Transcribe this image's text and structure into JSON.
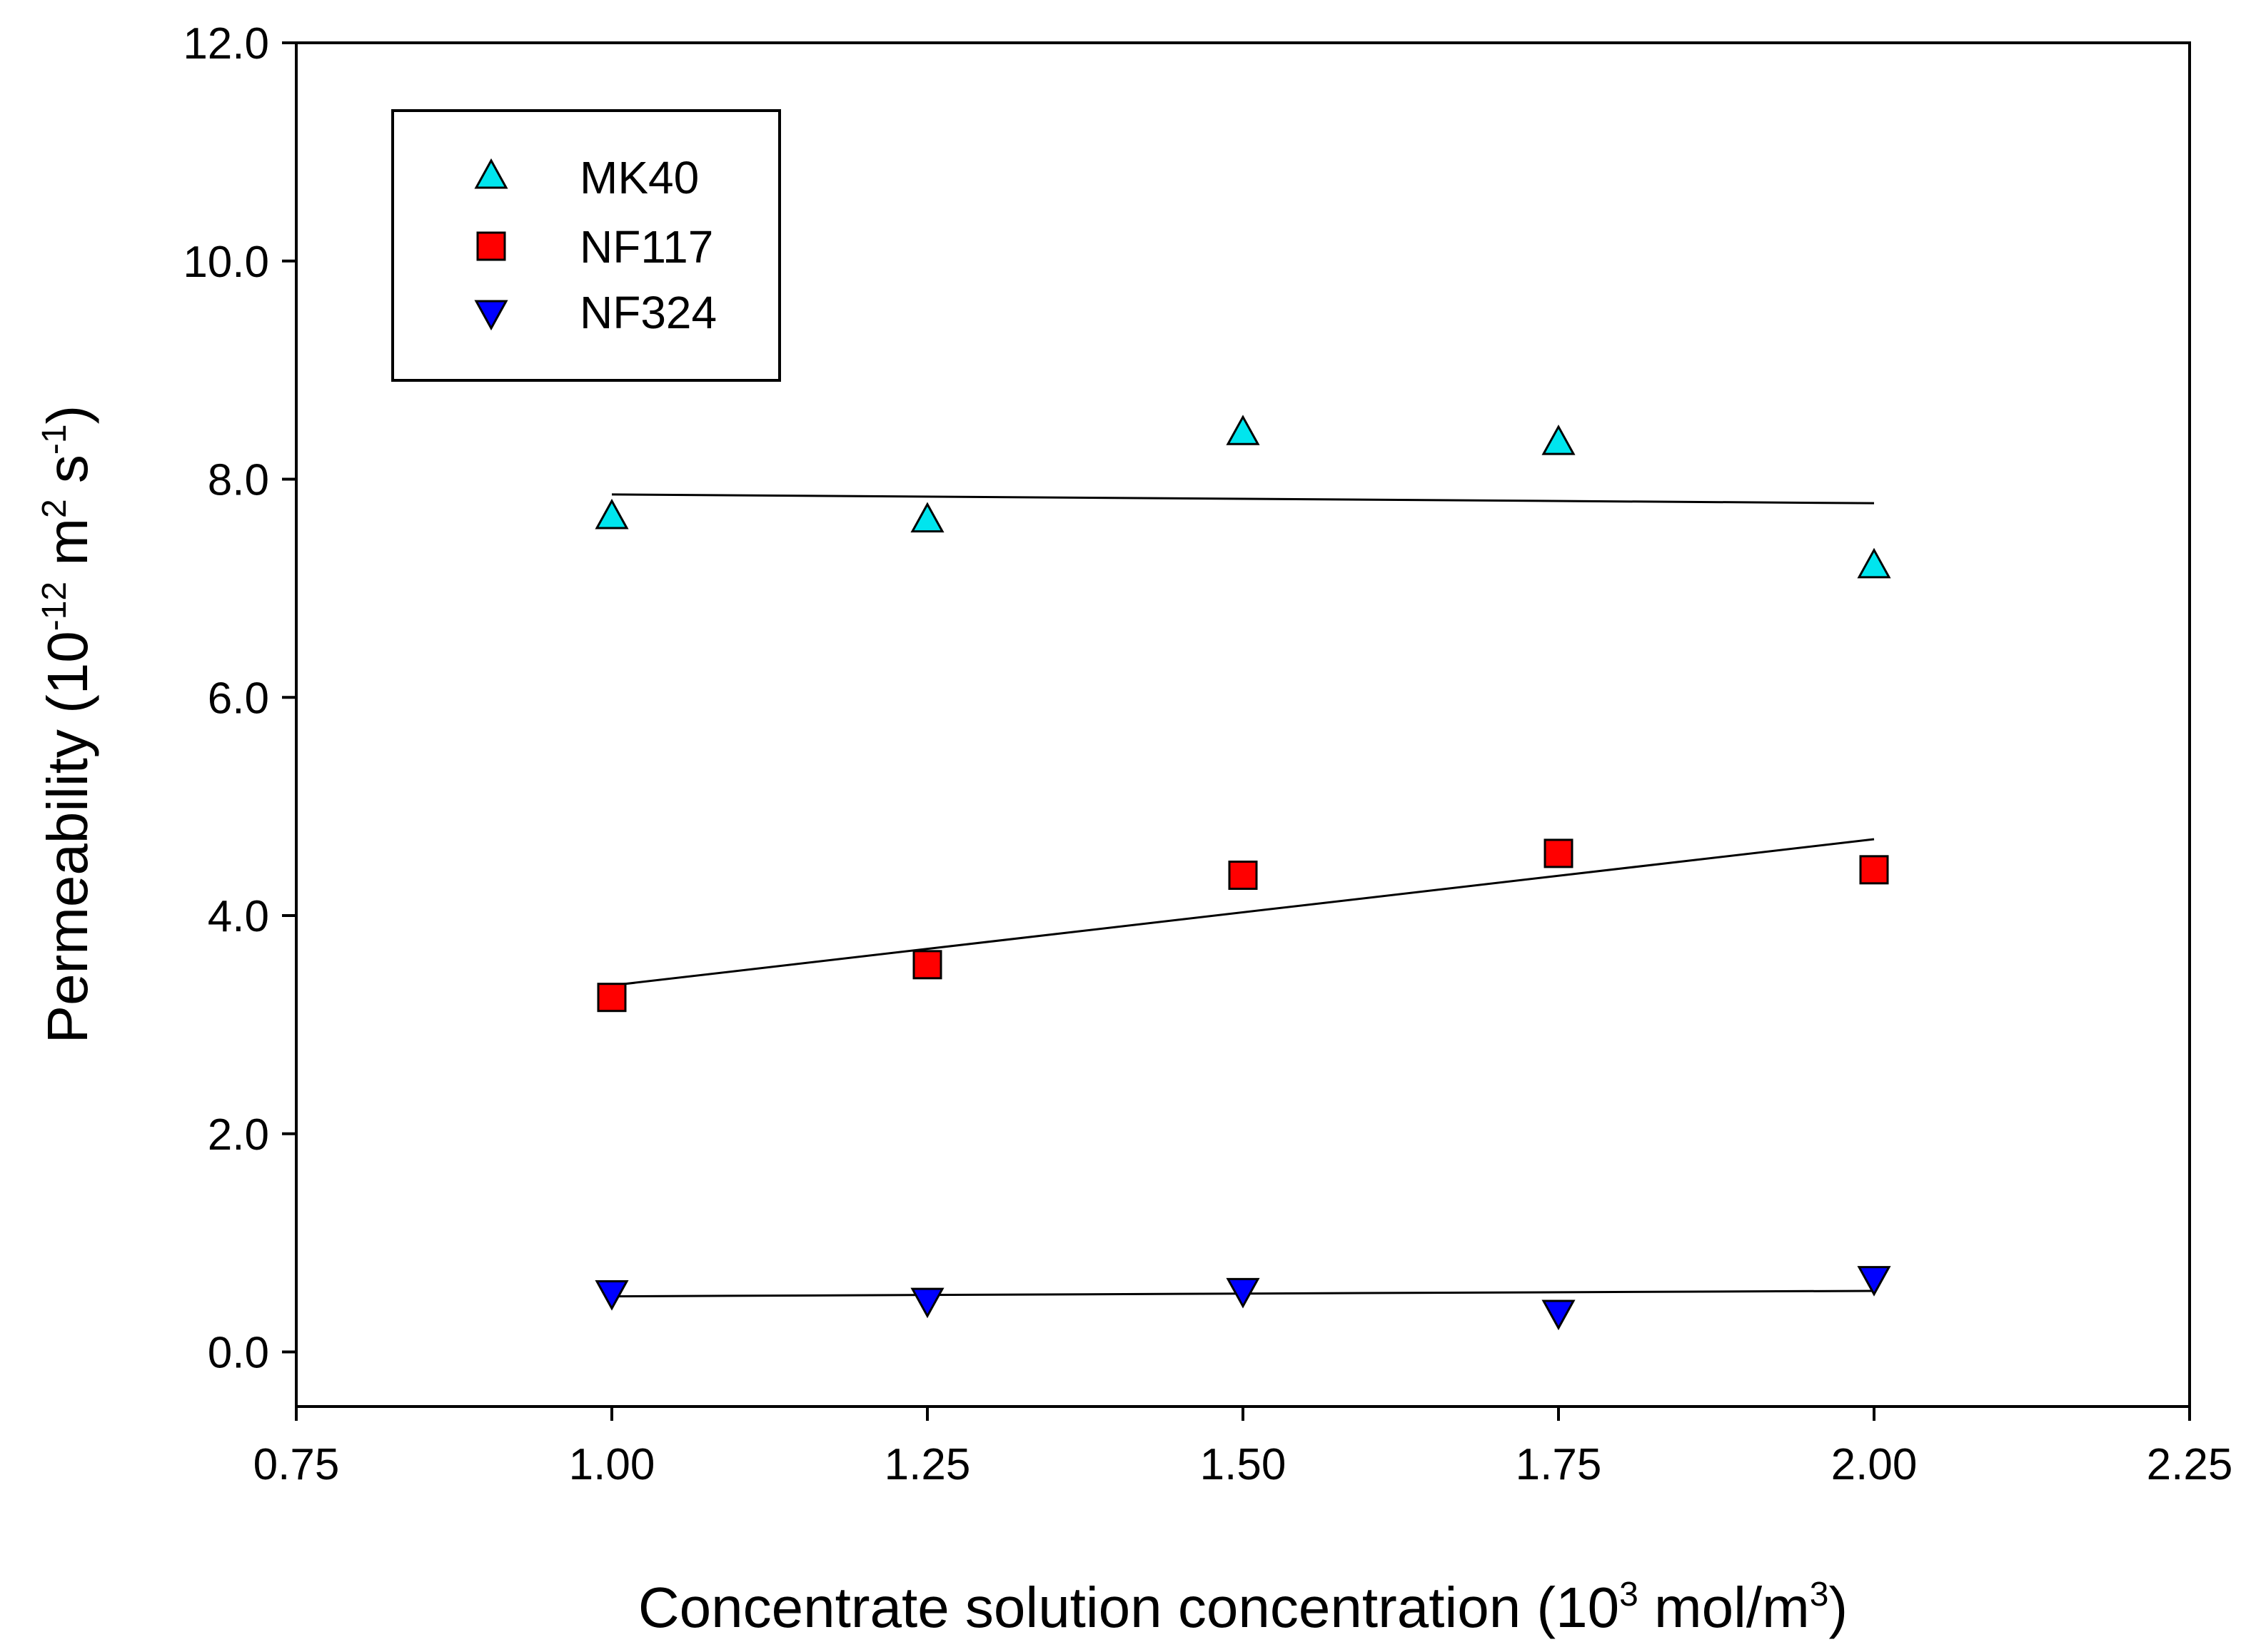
{
  "chart_data": {
    "type": "scatter",
    "xlabel": {
      "main": "Concentrate solution concentration (10",
      "sup": "3",
      "mid": " mol/m",
      "sup2": "3",
      "end": ")"
    },
    "ylabel": {
      "main": "Permeability  (10",
      "sup1": "-12",
      "mid": " m",
      "sup2": "2",
      "mid2": " s",
      "sup3": "-1",
      "end": ")"
    },
    "xlim": [
      0.75,
      2.25
    ],
    "ylim": [
      -0.5,
      12.0
    ],
    "xticks": [
      "0.75",
      "1.00",
      "1.25",
      "1.50",
      "1.75",
      "2.00",
      "2.25"
    ],
    "yticks": [
      "0.0",
      "2.0",
      "4.0",
      "6.0",
      "8.0",
      "10.0",
      "12.0"
    ],
    "legend_position": "top-left",
    "series": [
      {
        "name": "MK40",
        "marker": "triangle-up",
        "color": "#00e5ee",
        "x": [
          1.0,
          1.25,
          1.5,
          1.75,
          2.0
        ],
        "y": [
          7.65,
          7.62,
          8.42,
          8.33,
          7.2
        ],
        "fit": {
          "x": [
            1.0,
            2.0
          ],
          "y": [
            7.86,
            7.78
          ]
        }
      },
      {
        "name": "NF117",
        "marker": "square",
        "color": "#ff0000",
        "x": [
          1.0,
          1.25,
          1.5,
          1.75,
          2.0
        ],
        "y": [
          3.25,
          3.55,
          4.37,
          4.57,
          4.42
        ],
        "fit": {
          "x": [
            1.0,
            2.0
          ],
          "y": [
            3.36,
            4.7
          ]
        }
      },
      {
        "name": "NF324",
        "marker": "triangle-down",
        "color": "#0000ff",
        "x": [
          1.0,
          1.25,
          1.5,
          1.75,
          2.0
        ],
        "y": [
          0.55,
          0.48,
          0.57,
          0.37,
          0.68
        ],
        "fit": {
          "x": [
            1.0,
            2.0
          ],
          "y": [
            0.51,
            0.56
          ]
        }
      }
    ]
  }
}
